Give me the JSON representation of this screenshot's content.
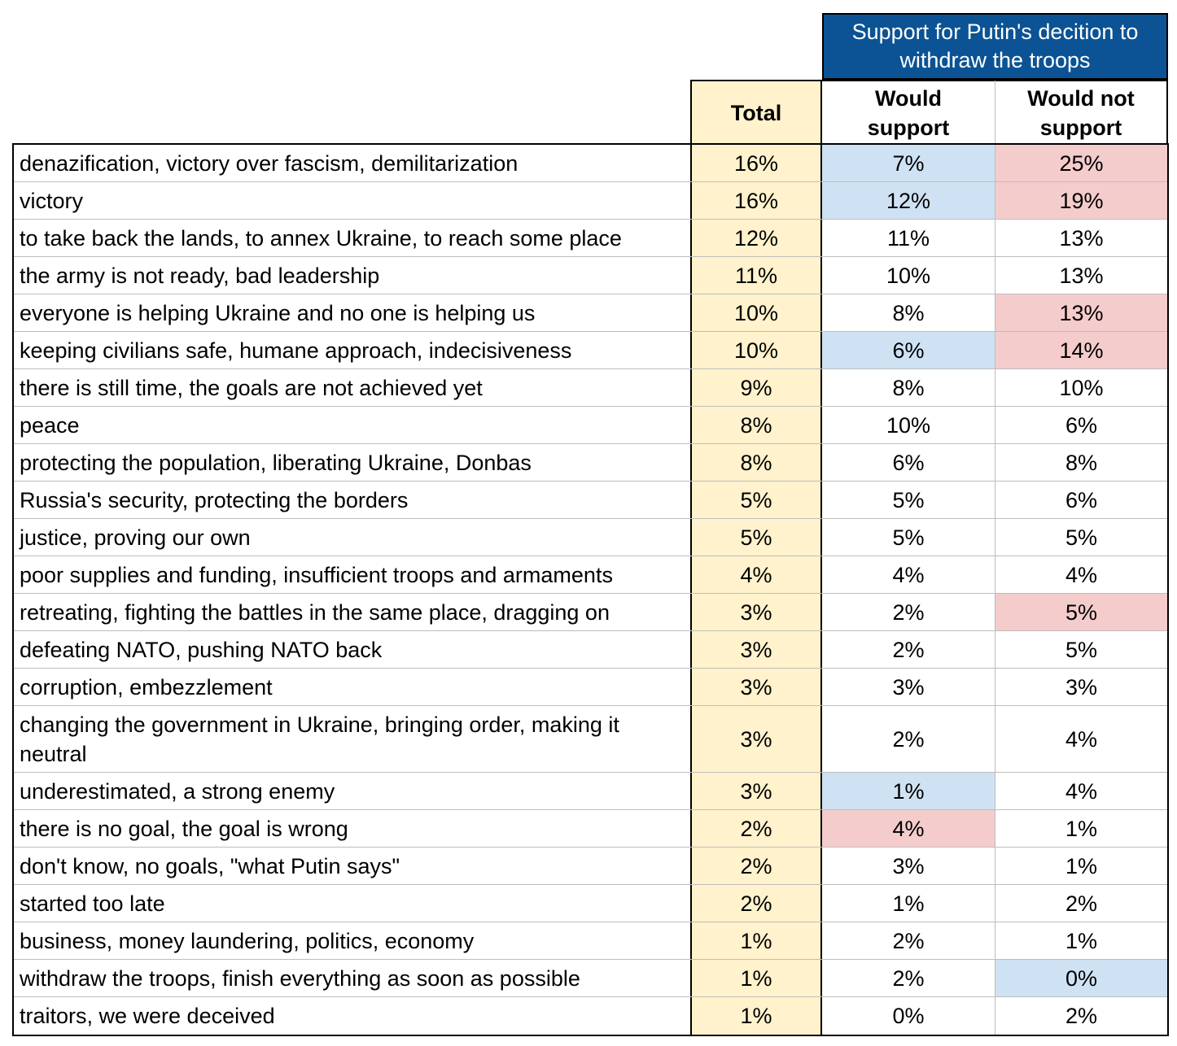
{
  "chart_data": {
    "type": "table",
    "group_header": "Support for Putin's decition to withdraw the troops",
    "columns": [
      "Total",
      "Would support",
      "Would not support"
    ],
    "colors": {
      "total_bg": "#fff2cc",
      "header_bg": "#0b5394",
      "highlight_low": "#cfe2f3",
      "highlight_high": "#f4cccc"
    },
    "rows": [
      {
        "label": "denazification, victory over fascism, demilitarization",
        "total": "16%",
        "support": "7%",
        "nosupport": "25%",
        "hs": "blue",
        "hn": "red"
      },
      {
        "label": "victory",
        "total": "16%",
        "support": "12%",
        "nosupport": "19%",
        "hs": "blue",
        "hn": "red"
      },
      {
        "label": "to take back the lands, to annex Ukraine, to reach some place",
        "total": "12%",
        "support": "11%",
        "nosupport": "13%",
        "hs": "",
        "hn": ""
      },
      {
        "label": "the army is not ready, bad leadership",
        "total": "11%",
        "support": "10%",
        "nosupport": "13%",
        "hs": "",
        "hn": ""
      },
      {
        "label": "everyone is helping Ukraine and no one is helping us",
        "total": "10%",
        "support": "8%",
        "nosupport": "13%",
        "hs": "",
        "hn": "red"
      },
      {
        "label": "keeping civilians safe, humane approach, indecisiveness",
        "total": "10%",
        "support": "6%",
        "nosupport": "14%",
        "hs": "blue",
        "hn": "red"
      },
      {
        "label": "there is still time, the goals are not achieved yet",
        "total": "9%",
        "support": "8%",
        "nosupport": "10%",
        "hs": "",
        "hn": ""
      },
      {
        "label": "peace",
        "total": "8%",
        "support": "10%",
        "nosupport": "6%",
        "hs": "",
        "hn": ""
      },
      {
        "label": "protecting the population, liberating Ukraine, Donbas",
        "total": "8%",
        "support": "6%",
        "nosupport": "8%",
        "hs": "",
        "hn": ""
      },
      {
        "label": "Russia's security, protecting the borders",
        "total": "5%",
        "support": "5%",
        "nosupport": "6%",
        "hs": "",
        "hn": ""
      },
      {
        "label": "justice, proving our own",
        "total": "5%",
        "support": "5%",
        "nosupport": "5%",
        "hs": "",
        "hn": ""
      },
      {
        "label": "poor supplies and funding, insufficient troops and armaments",
        "total": "4%",
        "support": "4%",
        "nosupport": "4%",
        "hs": "",
        "hn": ""
      },
      {
        "label": "retreating, fighting the battles in the same place, dragging on",
        "total": "3%",
        "support": "2%",
        "nosupport": "5%",
        "hs": "",
        "hn": "red"
      },
      {
        "label": "defeating NATO, pushing NATO back",
        "total": "3%",
        "support": "2%",
        "nosupport": "5%",
        "hs": "",
        "hn": ""
      },
      {
        "label": "corruption, embezzlement",
        "total": "3%",
        "support": "3%",
        "nosupport": "3%",
        "hs": "",
        "hn": ""
      },
      {
        "label": "changing the government in Ukraine, bringing order, making it neutral",
        "total": "3%",
        "support": "2%",
        "nosupport": "4%",
        "hs": "",
        "hn": ""
      },
      {
        "label": "underestimated, a strong enemy",
        "total": "3%",
        "support": "1%",
        "nosupport": "4%",
        "hs": "blue",
        "hn": ""
      },
      {
        "label": "there is no goal, the goal is wrong",
        "total": "2%",
        "support": "4%",
        "nosupport": "1%",
        "hs": "red",
        "hn": ""
      },
      {
        "label": "don't know, no goals, \"what Putin says\"",
        "total": "2%",
        "support": "3%",
        "nosupport": "1%",
        "hs": "",
        "hn": ""
      },
      {
        "label": "started too late",
        "total": "2%",
        "support": "1%",
        "nosupport": "2%",
        "hs": "",
        "hn": ""
      },
      {
        "label": "business, money laundering, politics, economy",
        "total": "1%",
        "support": "2%",
        "nosupport": "1%",
        "hs": "",
        "hn": ""
      },
      {
        "label": "withdraw the troops, finish everything as soon as possible",
        "total": "1%",
        "support": "2%",
        "nosupport": "0%",
        "hs": "",
        "hn": "blue"
      },
      {
        "label": "traitors, we were deceived",
        "total": "1%",
        "support": "0%",
        "nosupport": "2%",
        "hs": "",
        "hn": ""
      }
    ]
  }
}
